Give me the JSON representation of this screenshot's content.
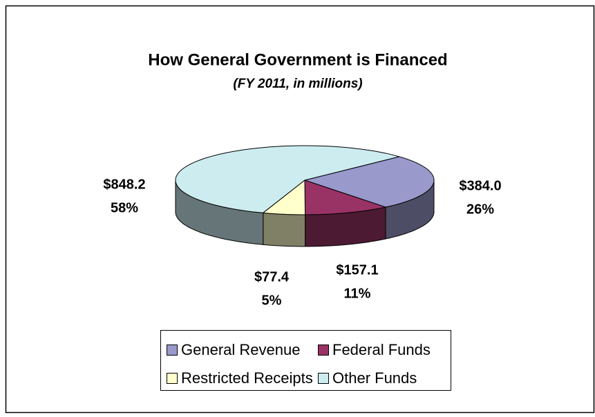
{
  "chart_data": {
    "type": "pie3d",
    "title": "How General Government is Financed",
    "subtitle": "(FY 2011, in millions)",
    "categories": [
      "General Revenue",
      "Federal Funds",
      "Restricted Receipts",
      "Other Funds"
    ],
    "values": [
      384.0,
      157.1,
      77.4,
      848.2
    ],
    "value_labels": [
      "$384.0",
      "$157.1",
      "$77.4",
      "$848.2"
    ],
    "percent_labels": [
      "26%",
      "11%",
      "5%",
      "58%"
    ],
    "colors": [
      "#9999cc",
      "#993366",
      "#ffffcc",
      "#ccecf0"
    ],
    "legend": "bottom"
  }
}
